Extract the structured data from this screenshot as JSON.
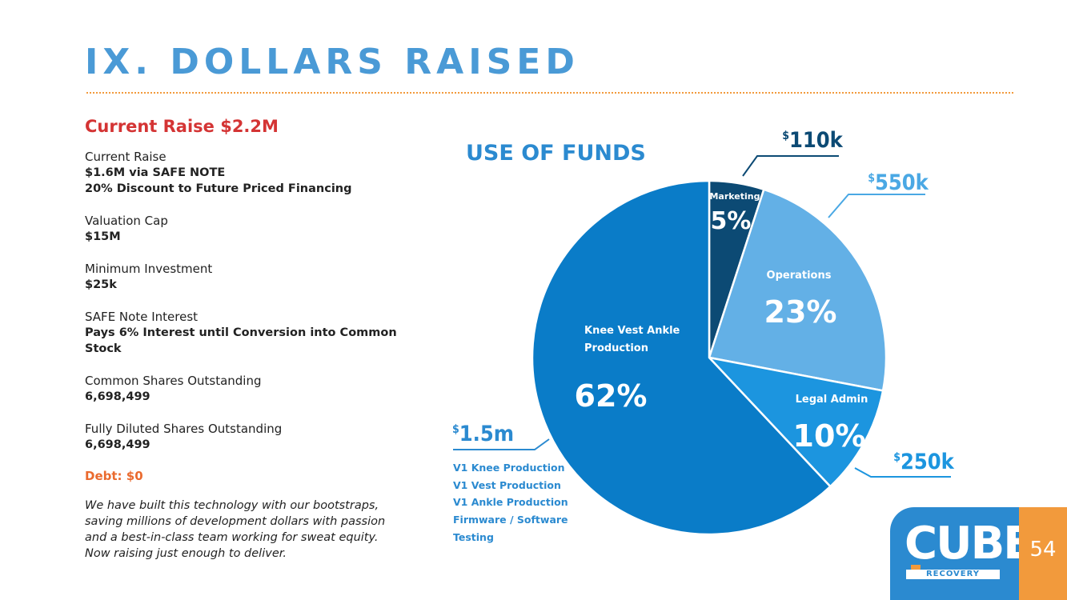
{
  "slide": {
    "title": "IX. DOLLARS RAISED",
    "page_number": "54"
  },
  "raise": {
    "title": "Current Raise $2.2M",
    "items": [
      {
        "label": "Current Raise",
        "lines": [
          "$1.6M via SAFE NOTE",
          "20% Discount to Future Priced Financing"
        ]
      },
      {
        "label": "Valuation Cap",
        "lines": [
          "$15M"
        ]
      },
      {
        "label": "Minimum Investment",
        "lines": [
          "$25k"
        ]
      },
      {
        "label": "SAFE Note Interest",
        "lines": [
          "Pays 6% Interest until Conversion into Common Stock"
        ]
      },
      {
        "label": "Common Shares Outstanding",
        "lines": [
          "6,698,499"
        ]
      },
      {
        "label": "Fully Diluted Shares Outstanding",
        "lines": [
          "6,698,499"
        ]
      }
    ],
    "debt": "Debt: $0",
    "note": "We have built this technology with our bootstraps, saving millions of development dollars with passion and a best-in-class team working for sweat equity. Now raising just enough to deliver."
  },
  "chart_data": {
    "type": "pie",
    "title": "USE OF FUNDS",
    "currency_symbol": "$",
    "slices": [
      {
        "label": "Marketing",
        "percent": 5,
        "percent_label": "5%",
        "amount": "110k",
        "color": "#0c4a74"
      },
      {
        "label": "Operations",
        "percent": 23,
        "percent_label": "23%",
        "amount": "550k",
        "color": "#63b0e6"
      },
      {
        "label": "Legal Admin",
        "percent": 10,
        "percent_label": "10%",
        "amount": "250k",
        "color": "#1c95df"
      },
      {
        "label": "Knee Vest Ankle Production",
        "label_lines": [
          "Knee Vest Ankle",
          "Production"
        ],
        "percent": 62,
        "percent_label": "62%",
        "amount": "1.5m",
        "color": "#0a7cc8"
      }
    ],
    "production_breakdown": [
      "V1 Knee Production",
      "V1 Vest Production",
      "V1 Ankle Production",
      "Firmware / Software",
      "Testing"
    ]
  },
  "logo": {
    "word": "CUBE",
    "sub": "RECOVERY"
  }
}
